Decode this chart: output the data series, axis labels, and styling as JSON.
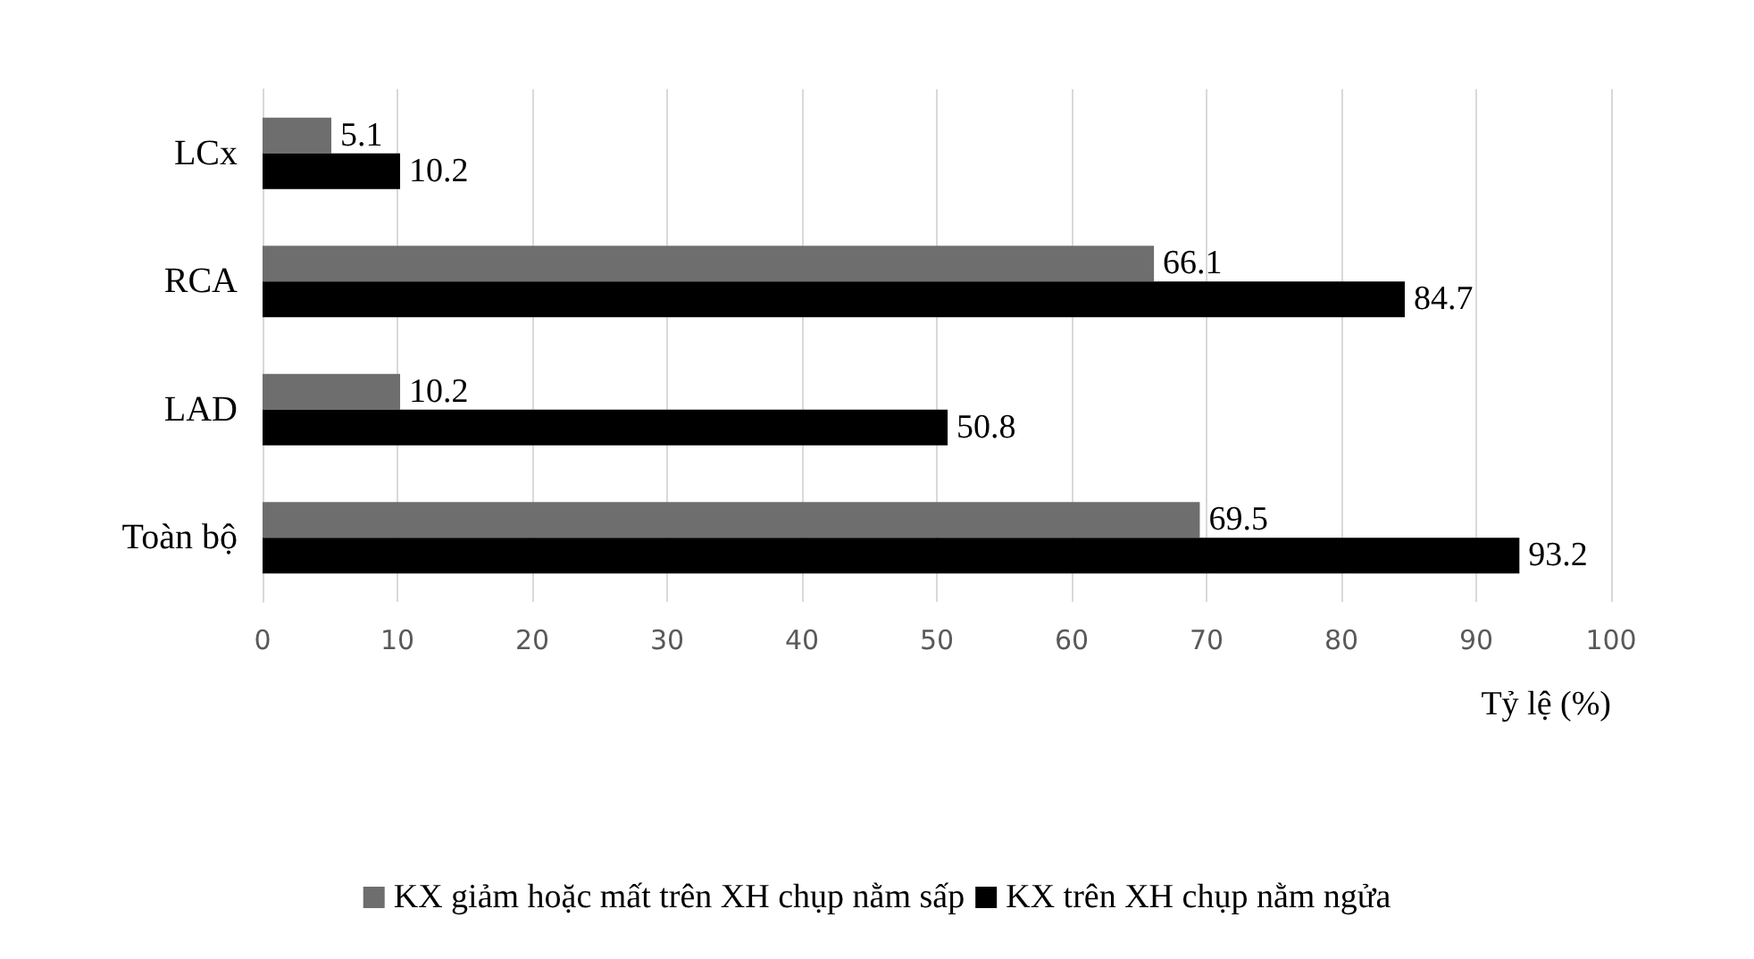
{
  "chart_data": {
    "type": "bar",
    "orientation": "horizontal",
    "categories": [
      "LCx",
      "RCA",
      "LAD",
      "Toàn bộ"
    ],
    "series": [
      {
        "name": "KX giảm hoặc mất trên XH chụp nằm sấp",
        "color": "#6e6e6e",
        "values": [
          5.1,
          66.1,
          10.2,
          69.5
        ]
      },
      {
        "name": "KX trên XH chụp nằm ngửa",
        "color": "#000000",
        "values": [
          10.2,
          84.7,
          50.8,
          93.2
        ]
      }
    ],
    "xlabel": "Tỷ lệ (%)",
    "xlim": [
      0,
      100
    ],
    "xticks": [
      0,
      10,
      20,
      30,
      40,
      50,
      60,
      70,
      80,
      90,
      100
    ],
    "grid": "x",
    "legend": "bottom",
    "data_labels": true
  }
}
